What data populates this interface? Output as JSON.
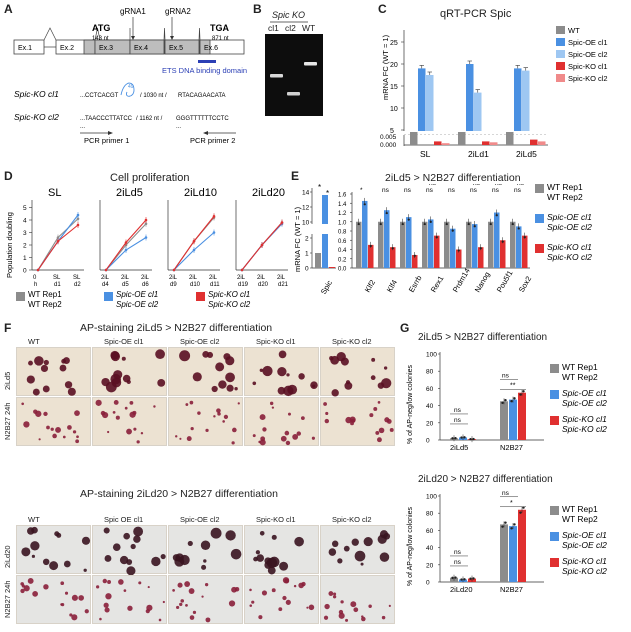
{
  "panel_labels": [
    "A",
    "B",
    "C",
    "D",
    "E",
    "F",
    "G"
  ],
  "panelA": {
    "exons": [
      "Ex.1",
      "Ex.2",
      "Ex.3",
      "Ex.4",
      "Ex.5",
      "Ex.6"
    ],
    "atg": "ATG",
    "atg_nt": "143 nt",
    "grna1": "gRNA1",
    "grna2": "gRNA2",
    "tga": "TGA",
    "tga_nt": "871 nt",
    "domain": "ETS DNA binding domain",
    "ko1_label": "Spic-KO cl1",
    "ko1_left": "...CCTCACGT",
    "ko1_ins": "49",
    "ko1_mid": "/ 1030 nt /",
    "ko1_right": "RTACAGAACATA",
    "ko2_label": "Spic-KO cl2",
    "ko2_left": "...TAACCCTTATCC",
    "ko2_mid": "/ 1162 nt /",
    "ko2_right": "GGGTTTTTTCCTC",
    "dots": "...",
    "primer1": "PCR primer 1",
    "primer2": "PCR primer 2"
  },
  "panelB": {
    "title": "Spic KO",
    "lanes": [
      "cl1",
      "cl2",
      "WT"
    ]
  },
  "panelC": {
    "title": "qRT-PCR Spic",
    "ylabel": "mRNA FC (WT = 1)",
    "groups": [
      "SL",
      "2iLd1",
      "2iLd5"
    ],
    "legend": [
      "WT",
      "Spic-OE cl1",
      "Spic-OE cl2",
      "Spic-KO cl1",
      "Spic-KO cl2"
    ],
    "colors": [
      "#8c8c8c",
      "#4a90e2",
      "#9ec7f2",
      "#e03030",
      "#f08a8a"
    ],
    "upper_ticks": [
      "25",
      "20",
      "15",
      "10",
      "5"
    ],
    "lower_ticks": [
      "0.005",
      "0.000"
    ],
    "values": [
      [
        1,
        19,
        17.5,
        0.002,
        0.001
      ],
      [
        1,
        20,
        13.5,
        0.002,
        0.0015
      ],
      [
        1,
        19,
        18.5,
        0.003,
        0.002
      ]
    ]
  },
  "panelD": {
    "title": "Cell proliferation",
    "ylabel": "Population doubling",
    "subtitles": [
      "SL",
      "2iLd5",
      "2iLd10",
      "2iLd20"
    ],
    "xticks": [
      [
        "0 h",
        "SL d1",
        "SL d2"
      ],
      [
        "2iL d4",
        "2iL d5",
        "2iL d6"
      ],
      [
        "2iL d9",
        "2iL d10",
        "2iL d11"
      ],
      [
        "2iL d19",
        "2iL d20",
        "2iL d21"
      ]
    ],
    "yticks": [
      "0",
      "1",
      "2",
      "3",
      "4",
      "5"
    ],
    "legend_wt": [
      "WT Rep1",
      "WT Rep2"
    ],
    "legend_oe": [
      "Spic-OE cl1",
      "Spic-OE cl2"
    ],
    "legend_ko": [
      "Spic-KO cl1",
      "Spic-KO cl2"
    ],
    "series": {
      "WT": [
        [
          0,
          2.6,
          4.1
        ],
        [
          0,
          2.0,
          3.7
        ],
        [
          0,
          2.3,
          4.2
        ],
        [
          0,
          2.0,
          3.8
        ]
      ],
      "OE": [
        [
          0,
          2.3,
          4.4
        ],
        [
          0,
          1.6,
          2.6
        ],
        [
          0,
          1.6,
          3.0
        ],
        [
          0,
          2.0,
          3.7
        ]
      ],
      "KO": [
        [
          0,
          2.3,
          3.6
        ],
        [
          0,
          2.2,
          4.0
        ],
        [
          0,
          2.3,
          4.3
        ],
        [
          0,
          2.0,
          3.8
        ]
      ]
    }
  },
  "panelE": {
    "title": "2iLd5 > N2B27 differentiation",
    "ylabel": "mRNA FC (WT = 1)",
    "genes": [
      "Klf2",
      "Klf4",
      "Esrrb",
      "Rex1",
      "Prdm14",
      "Nanog",
      "Pou5f1",
      "Sox2"
    ],
    "spic_label": "Spic",
    "sig": [
      "*",
      "*",
      "*",
      "ns",
      "*",
      "ns",
      "ns",
      "ns"
    ],
    "sig2": [
      "*",
      "ns",
      "ns",
      "ns",
      "ns",
      "ns",
      "ns",
      "ns"
    ],
    "spic_values": [
      1.0,
      13.5,
      0.02
    ],
    "values": [
      [
        1.0,
        1.45,
        0.5
      ],
      [
        1.0,
        1.25,
        0.45
      ],
      [
        1.0,
        1.1,
        0.28
      ],
      [
        1.0,
        1.05,
        0.7
      ],
      [
        1.0,
        0.85,
        0.4
      ],
      [
        1.0,
        0.95,
        0.45
      ],
      [
        1.0,
        1.2,
        0.6
      ],
      [
        1.0,
        0.9,
        0.7
      ]
    ],
    "yticks_main": [
      "0.0",
      "0.2",
      "0.4",
      "0.6",
      "0.8",
      "1.0",
      "1.2",
      "1.4",
      "1.6"
    ],
    "yticks_spic_upper": [
      "14",
      "12",
      "10"
    ],
    "yticks_spic_lower": [
      "2",
      "1",
      "0"
    ],
    "legend_wt": [
      "WT Rep1",
      "WT Rep2"
    ],
    "legend_oe": [
      "Spic-OE cl1",
      "Spic-OE cl2"
    ],
    "legend_ko": [
      "Spic-KO cl1",
      "Spic-KO cl2"
    ]
  },
  "panelF": {
    "title1": "AP-staining 2iLd5 > N2B27 differentiation",
    "title2": "AP-staining 2iLd20 > N2B27 differentiation",
    "cols1": [
      "WT",
      "Spic-OE cl1",
      "Spic-OE cl2",
      "Spic-KO cl1",
      "Spic-KO cl2"
    ],
    "cols2": [
      "WT",
      "Spic OE cl1",
      "Spic-OE cl2",
      "Spic-KO cl1",
      "Spic-KO cl2"
    ],
    "rows1": [
      "2iLd5",
      "N2B27 24h"
    ],
    "rows2": [
      "2iLd20",
      "N2B27 24h"
    ]
  },
  "panelG": {
    "title1": "2iLd5 > N2B27 differentiation",
    "title2": "2iLd20 > N2B27 differentiation",
    "ylabel": "% of AP-neg/low colonies",
    "yticks": [
      "0",
      "20",
      "40",
      "60",
      "80",
      "100"
    ],
    "groups1": [
      "2iLd5",
      "N2B27"
    ],
    "groups2": [
      "2iLd20",
      "N2B27"
    ],
    "sig1": [
      "ns",
      "ns",
      "ns",
      "**"
    ],
    "sig2": [
      "ns",
      "ns",
      "ns",
      "*"
    ],
    "values1": [
      [
        2,
        3,
        1
      ],
      [
        45,
        47,
        55
      ]
    ],
    "values2": [
      [
        5,
        3,
        4
      ],
      [
        67,
        65,
        84
      ]
    ],
    "legend_wt": [
      "WT Rep1",
      "WT Rep2"
    ],
    "legend_oe": [
      "Spic-OE cl1",
      "Spic-OE cl2"
    ],
    "legend_ko": [
      "Spic-KO cl1",
      "Spic-KO cl2"
    ]
  },
  "chart_data": [
    {
      "type": "bar",
      "title": "qRT-PCR Spic",
      "categories": [
        "SL",
        "2iLd1",
        "2iLd5"
      ],
      "ylabel": "mRNA FC (WT = 1)",
      "series": [
        {
          "name": "WT",
          "values": [
            1,
            1,
            1
          ]
        },
        {
          "name": "Spic-OE cl1",
          "values": [
            19,
            20,
            19
          ]
        },
        {
          "name": "Spic-OE cl2",
          "values": [
            17.5,
            13.5,
            18.5
          ]
        },
        {
          "name": "Spic-KO cl1",
          "values": [
            0.002,
            0.002,
            0.003
          ]
        },
        {
          "name": "Spic-KO cl2",
          "values": [
            0.001,
            0.0015,
            0.002
          ]
        }
      ]
    },
    {
      "type": "line",
      "title": "Cell proliferation",
      "ylabel": "Population doubling",
      "ylim": [
        0,
        5
      ]
    },
    {
      "type": "bar",
      "title": "2iLd5 > N2B27 differentiation",
      "ylabel": "mRNA FC (WT = 1)",
      "categories": [
        "Klf2",
        "Klf4",
        "Esrrb",
        "Rex1",
        "Prdm14",
        "Nanog",
        "Pou5f1",
        "Sox2"
      ]
    },
    {
      "type": "bar",
      "title": "2iLd5 > N2B27 differentiation",
      "ylabel": "% of AP-neg/low colonies",
      "categories": [
        "2iLd5",
        "N2B27"
      ],
      "ylim": [
        0,
        100
      ]
    },
    {
      "type": "bar",
      "title": "2iLd20 > N2B27 differentiation",
      "ylabel": "% of AP-neg/low colonies",
      "categories": [
        "2iLd20",
        "N2B27"
      ],
      "ylim": [
        0,
        100
      ]
    }
  ]
}
